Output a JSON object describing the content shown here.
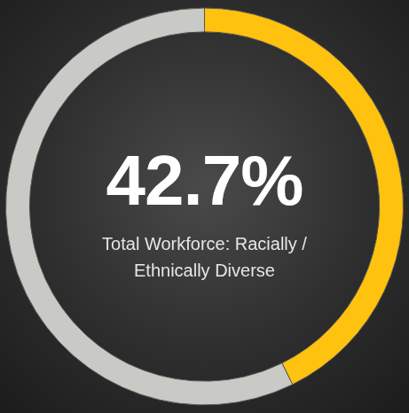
{
  "chart_data": {
    "type": "doughnut",
    "title": "Total Workforce: Racially / Ethnically Diverse",
    "values": [
      42.7,
      57.3
    ],
    "value_labels": [
      "42.7%",
      null
    ],
    "data_labels": true,
    "colors": [
      "#FFC20E",
      "#C9C9C5"
    ],
    "legend": false
  }
}
